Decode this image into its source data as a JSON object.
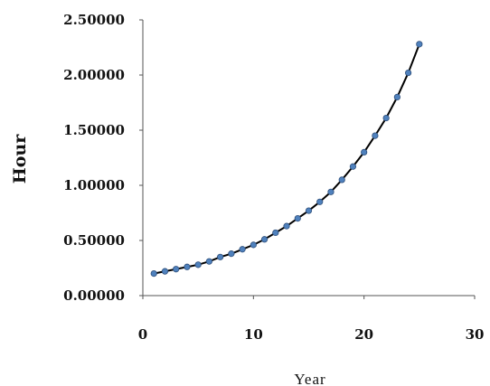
{
  "chart_data": {
    "type": "scatter",
    "title": "",
    "xlabel": "Year",
    "ylabel": "Hour",
    "xlim": [
      0,
      30
    ],
    "ylim": [
      0,
      2.5
    ],
    "x_ticks": [
      0,
      10,
      20,
      30
    ],
    "y_ticks": [
      0,
      0.5,
      1.0,
      1.5,
      2.0,
      2.5
    ],
    "x_tick_labels": [
      "0",
      "10",
      "20",
      "30"
    ],
    "y_tick_labels": [
      "0.00000",
      "0.50000",
      "1.00000",
      "1.50000",
      "2.00000",
      "2.50000"
    ],
    "grid": false,
    "legend": "none",
    "marker_color": "#4f81bd",
    "line_color": "#000000",
    "series": [
      {
        "x": [
          1,
          2,
          3,
          4,
          5,
          6,
          7,
          8,
          9,
          10,
          11,
          12,
          13,
          14,
          15,
          16,
          17,
          18,
          19,
          20,
          21,
          22,
          23,
          24,
          25
        ],
        "y": [
          0.2,
          0.22,
          0.24,
          0.26,
          0.28,
          0.31,
          0.35,
          0.38,
          0.42,
          0.46,
          0.51,
          0.57,
          0.63,
          0.7,
          0.77,
          0.85,
          0.94,
          1.05,
          1.17,
          1.3,
          1.45,
          1.61,
          1.8,
          2.02,
          2.28
        ]
      }
    ]
  }
}
